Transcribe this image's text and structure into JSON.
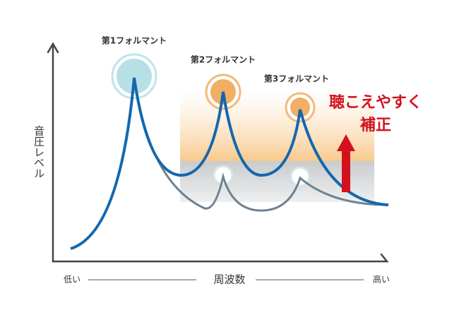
{
  "formants": [
    "第1フォルマント",
    "第2フォルマント",
    "第3フォルマント"
  ],
  "axes": {
    "y": "音圧レベル",
    "x": "周波数",
    "x_low": "低い",
    "x_high": "高い"
  },
  "annotation": [
    "聴こえやすく",
    "補正"
  ]
}
